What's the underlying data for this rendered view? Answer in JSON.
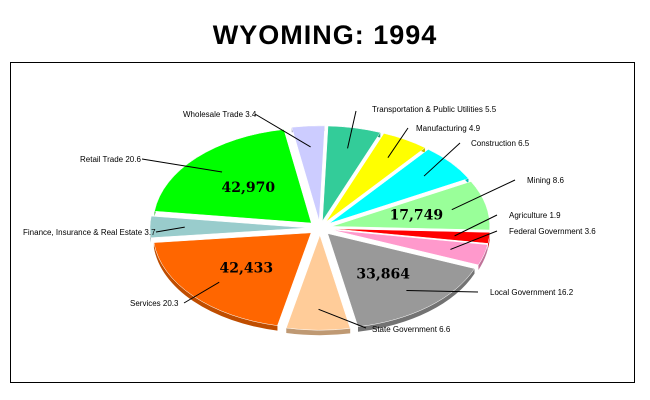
{
  "chart_data": {
    "type": "pie",
    "title": "WYOMING:  1994",
    "slices": [
      {
        "label": "Wholesale Trade",
        "value": 3.4,
        "color": "#ccccff"
      },
      {
        "label": "Transportation & Public Utilities",
        "value": 5.5,
        "color": "#33cc99"
      },
      {
        "label": "Manufacturing",
        "value": 4.9,
        "color": "#ffff00"
      },
      {
        "label": "Construction",
        "value": 6.5,
        "color": "#00ffff"
      },
      {
        "label": "Mining",
        "value": 8.6,
        "color": "#99ff99"
      },
      {
        "label": "Agriculture",
        "value": 1.9,
        "color": "#ff0000"
      },
      {
        "label": "Federal Government",
        "value": 3.6,
        "color": "#ff99cc"
      },
      {
        "label": "Local Government",
        "value": 16.2,
        "color": "#999999"
      },
      {
        "label": "State Government",
        "value": 6.6,
        "color": "#ffcc99"
      },
      {
        "label": "Services",
        "value": 20.3,
        "color": "#ff6600"
      },
      {
        "label": "Finance, Insurance & Real Estate",
        "value": 3.7,
        "color": "#99cccc"
      },
      {
        "label": "Retail Trade",
        "value": 20.6,
        "color": "#00ff00"
      }
    ],
    "slice_labels": [
      "Wholesale Trade 3.4",
      "Transportation & Public Utilities 5.5",
      "Manufacturing 4.9",
      "Construction 6.5",
      "Mining 8.6",
      "Agriculture 1.9",
      "Federal Government 3.6",
      "Local Government 16.2",
      "State Government 6.6",
      "Services 20.3",
      "Finance, Insurance & Real Estate 3.7",
      "Retail Trade 20.6"
    ],
    "value_labels": [
      {
        "slice": "Retail Trade",
        "text": "42,970"
      },
      {
        "slice": "Services",
        "text": "42,433"
      },
      {
        "slice": "Local Government",
        "text": "33,864"
      },
      {
        "slice": "Mining",
        "text": "17,749"
      }
    ]
  }
}
